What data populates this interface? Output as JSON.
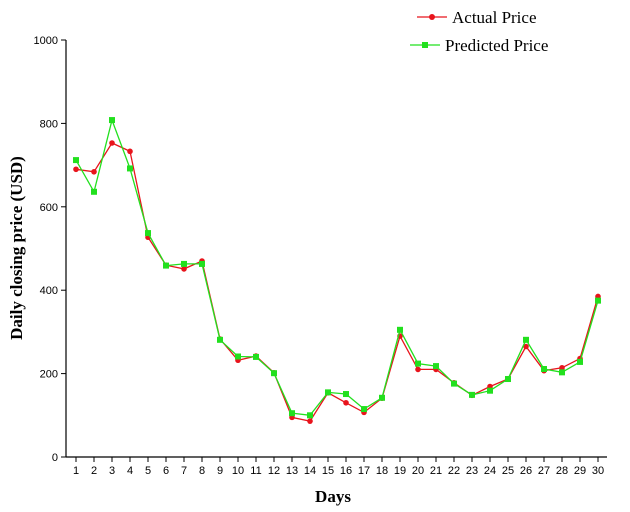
{
  "chart_data": {
    "type": "line",
    "title": "",
    "xlabel": "Days",
    "ylabel": "Daily closing price (USD)",
    "x": [
      1,
      2,
      3,
      4,
      5,
      6,
      7,
      8,
      9,
      10,
      11,
      12,
      13,
      14,
      15,
      16,
      17,
      18,
      19,
      20,
      21,
      22,
      23,
      24,
      25,
      26,
      27,
      28,
      29,
      30
    ],
    "xticks": [
      "1",
      "2",
      "3",
      "4",
      "5",
      "6",
      "7",
      "8",
      "9",
      "10",
      "11",
      "12",
      "13",
      "14",
      "15",
      "16",
      "17",
      "18",
      "19",
      "20",
      "21",
      "22",
      "23",
      "24",
      "25",
      "26",
      "27",
      "28",
      "29",
      "30"
    ],
    "ylim": [
      0,
      1000
    ],
    "yticks": [
      "0",
      "200",
      "400",
      "600",
      "800",
      "1000"
    ],
    "grid": false,
    "legend_position": "top-right",
    "series": [
      {
        "name": "Actual Price",
        "color": "#e8141c",
        "marker": "circle",
        "values": [
          690,
          684,
          753,
          733,
          527,
          460,
          451,
          470,
          283,
          232,
          242,
          202,
          95,
          86,
          154,
          130,
          107,
          141,
          290,
          210,
          210,
          178,
          148,
          169,
          187,
          265,
          207,
          214,
          236,
          385
        ]
      },
      {
        "name": "Predicted Price",
        "color": "#22e01e",
        "marker": "square",
        "values": [
          712,
          636,
          808,
          692,
          537,
          459,
          463,
          463,
          281,
          241,
          240,
          201,
          105,
          100,
          155,
          151,
          115,
          142,
          305,
          224,
          218,
          176,
          149,
          159,
          187,
          281,
          211,
          203,
          228,
          375
        ]
      }
    ]
  }
}
